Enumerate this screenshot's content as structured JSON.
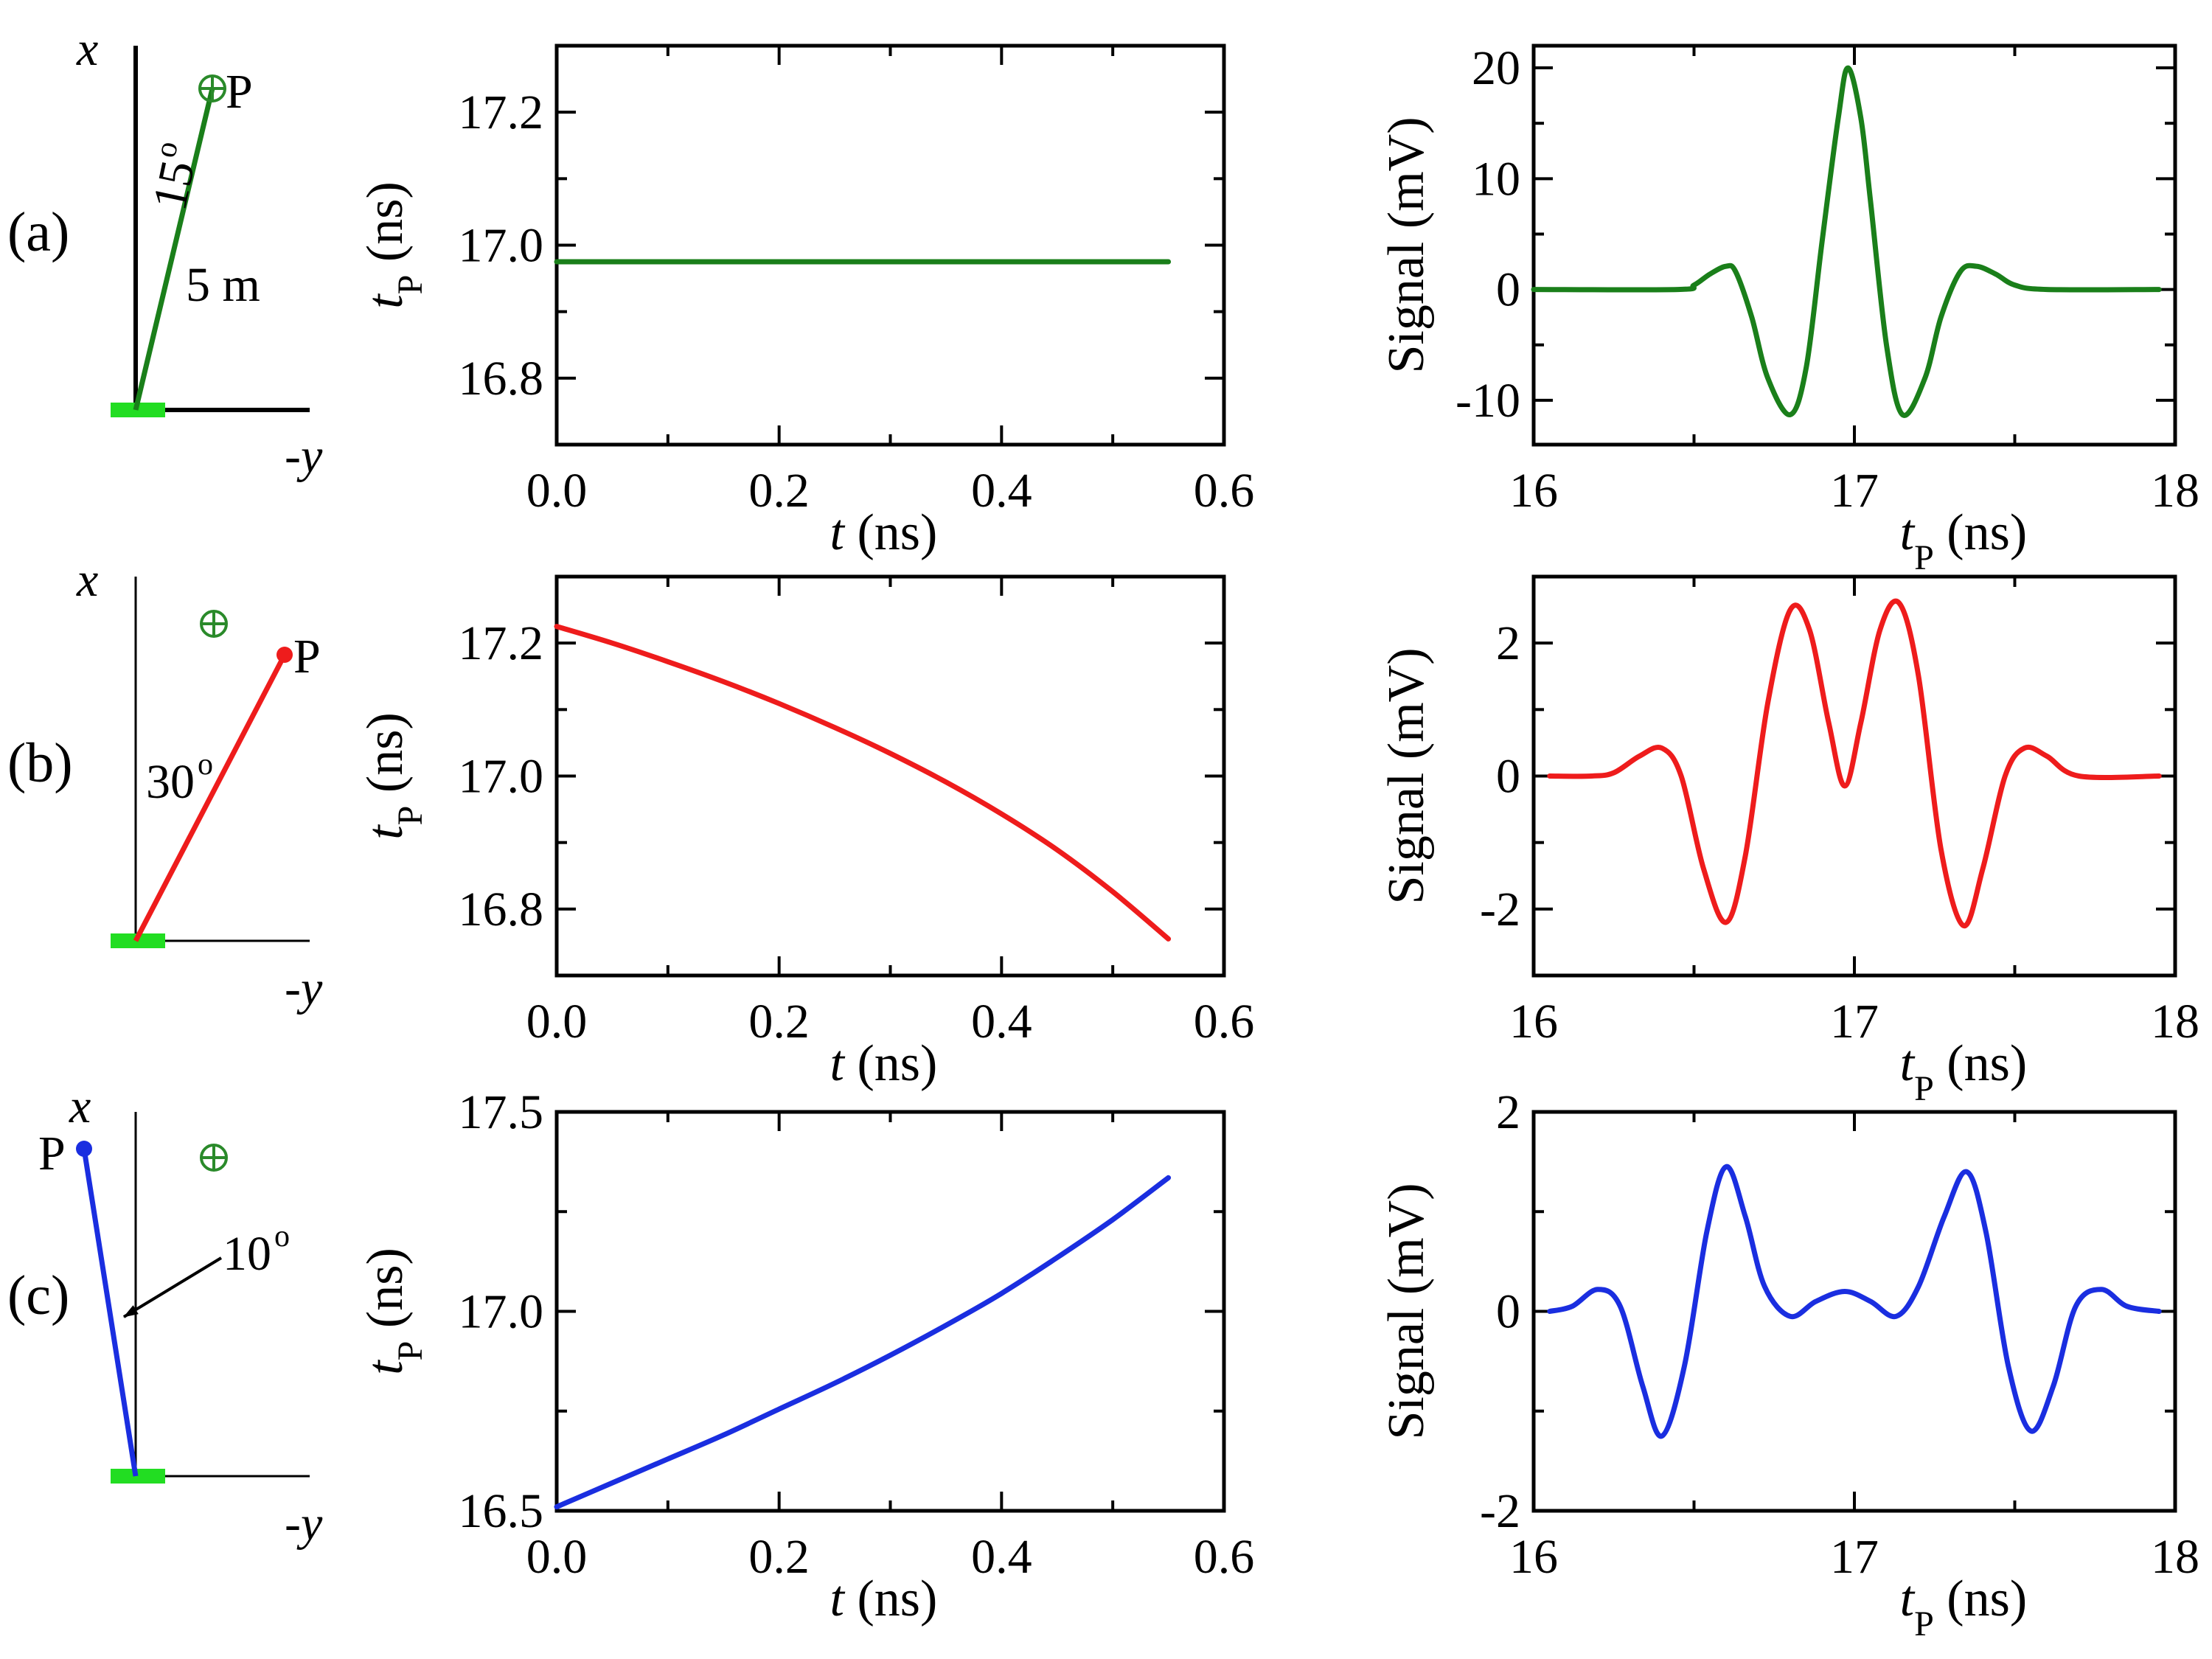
{
  "colors": {
    "green": "#1a7f1a",
    "red": "#ee1c1c",
    "blue": "#1a2ee0",
    "source_bar": "#22dd22",
    "circle_plus": "#2a8a2a"
  },
  "diagrams": [
    {
      "row_label": "(a)",
      "x_label": "x",
      "y_label": "-y",
      "point_label": "P",
      "angle_label": "15",
      "degree_mark": "o",
      "length_label": "5 m"
    },
    {
      "row_label": "(b)",
      "x_label": "x",
      "y_label": "-y",
      "point_label": "P",
      "angle_label": "30",
      "degree_mark": "o"
    },
    {
      "row_label": "(c)",
      "x_label": "x",
      "y_label": "-y",
      "point_label": "P",
      "angle_label": "10",
      "degree_mark": "o"
    }
  ],
  "chart_data": [
    {
      "id": "a-mid",
      "type": "line",
      "color_key": "green",
      "xlabel": "t (ns)",
      "ylabel": "tP (ns)",
      "xlim": [
        0,
        0.6
      ],
      "ylim": [
        16.7,
        17.3
      ],
      "xticks": [
        0,
        0.2,
        0.4,
        0.6
      ],
      "xtick_labels": [
        "0.0",
        "0.2",
        "0.4",
        "0.6"
      ],
      "yticks": [
        16.8,
        17.0,
        17.2
      ],
      "ytick_labels": [
        "16.8",
        "17.0",
        "17.2"
      ],
      "minor_x": [
        0.1,
        0.3,
        0.5
      ],
      "minor_y": [
        16.9,
        17.1
      ],
      "series": [
        {
          "name": "tP",
          "x": [
            0,
            0.55
          ],
          "y": [
            16.975,
            16.975
          ]
        }
      ]
    },
    {
      "id": "a-right",
      "type": "line",
      "color_key": "green",
      "xlabel": "tP (ns)",
      "ylabel": "Signal (mV)",
      "xlim": [
        16,
        18
      ],
      "ylim": [
        -14,
        22
      ],
      "xticks": [
        16,
        17,
        18
      ],
      "xtick_labels": [
        "16",
        "17",
        "18"
      ],
      "yticks": [
        -10,
        0,
        10,
        20
      ],
      "ytick_labels": [
        "-10",
        "0",
        "10",
        "20"
      ],
      "minor_x": [
        16.5,
        17.5
      ],
      "minor_y": [
        -5,
        5,
        15
      ],
      "series": [
        {
          "name": "signal",
          "x": [
            16.0,
            16.45,
            16.5,
            16.55,
            16.6,
            16.63,
            16.68,
            16.73,
            16.8,
            16.85,
            16.9,
            16.95,
            16.98,
            17.02,
            17.05,
            17.1,
            17.15,
            17.22,
            17.27,
            17.33,
            17.38,
            17.44,
            17.5,
            17.6,
            17.95
          ],
          "y": [
            0,
            0,
            0.4,
            1.4,
            2.1,
            1.6,
            -2.5,
            -8,
            -11.3,
            -7,
            4.5,
            15.5,
            20,
            15.5,
            8,
            -5,
            -11.3,
            -8,
            -2.5,
            1.6,
            2.1,
            1.4,
            0.4,
            0,
            0
          ]
        }
      ]
    },
    {
      "id": "b-mid",
      "type": "line",
      "color_key": "red",
      "xlabel": "t (ns)",
      "ylabel": "tP (ns)",
      "xlim": [
        0,
        0.6
      ],
      "ylim": [
        16.7,
        17.3
      ],
      "xticks": [
        0,
        0.2,
        0.4,
        0.6
      ],
      "xtick_labels": [
        "0.0",
        "0.2",
        "0.4",
        "0.6"
      ],
      "yticks": [
        16.8,
        17.0,
        17.2
      ],
      "ytick_labels": [
        "16.8",
        "17.0",
        "17.2"
      ],
      "minor_x": [
        0.1,
        0.3,
        0.5
      ],
      "minor_y": [
        16.9,
        17.1
      ],
      "series": [
        {
          "name": "tP",
          "x": [
            0,
            0.05,
            0.1,
            0.15,
            0.2,
            0.25,
            0.3,
            0.35,
            0.4,
            0.45,
            0.5,
            0.55
          ],
          "y": [
            17.225,
            17.2,
            17.172,
            17.142,
            17.109,
            17.073,
            17.034,
            16.991,
            16.943,
            16.889,
            16.826,
            16.755
          ]
        }
      ]
    },
    {
      "id": "b-right",
      "type": "line",
      "color_key": "red",
      "xlabel": "tP (ns)",
      "ylabel": "Signal (mV)",
      "xlim": [
        16,
        18
      ],
      "ylim": [
        -3,
        3
      ],
      "xticks": [
        16,
        17,
        18
      ],
      "xtick_labels": [
        "16",
        "17",
        "18"
      ],
      "yticks": [
        -2,
        0,
        2
      ],
      "ytick_labels": [
        "-2",
        "0",
        "2"
      ],
      "minor_x": [
        16.5,
        17.5
      ],
      "minor_y": [
        -1,
        1
      ],
      "series": [
        {
          "name": "signal",
          "x": [
            16.05,
            16.18,
            16.25,
            16.33,
            16.4,
            16.46,
            16.53,
            16.6,
            16.66,
            16.73,
            16.8,
            16.86,
            16.92,
            16.97,
            17.02,
            17.08,
            17.14,
            17.2,
            17.27,
            17.34,
            17.4,
            17.47,
            17.53,
            17.6,
            17.7,
            17.95
          ],
          "y": [
            0,
            0,
            0.05,
            0.3,
            0.42,
            0,
            -1.4,
            -2.2,
            -1.2,
            1.1,
            2.5,
            2.2,
            0.8,
            -0.15,
            0.8,
            2.2,
            2.6,
            1.5,
            -1.1,
            -2.25,
            -1.4,
            0,
            0.42,
            0.3,
            0,
            0
          ]
        }
      ]
    },
    {
      "id": "c-mid",
      "type": "line",
      "color_key": "blue",
      "xlabel": "t (ns)",
      "ylabel": "tP (ns)",
      "xlim": [
        0,
        0.6
      ],
      "ylim": [
        16.5,
        17.5
      ],
      "xticks": [
        0,
        0.2,
        0.4,
        0.6
      ],
      "xtick_labels": [
        "0.0",
        "0.2",
        "0.4",
        "0.6"
      ],
      "yticks": [
        16.5,
        17.0,
        17.5
      ],
      "ytick_labels": [
        "16.5",
        "17.0",
        "17.5"
      ],
      "minor_x": [
        0.1,
        0.3,
        0.5
      ],
      "minor_y": [
        16.75,
        17.25
      ],
      "series": [
        {
          "name": "tP",
          "x": [
            0,
            0.05,
            0.1,
            0.15,
            0.2,
            0.25,
            0.3,
            0.35,
            0.4,
            0.45,
            0.5,
            0.55
          ],
          "y": [
            16.51,
            16.57,
            16.63,
            16.69,
            16.755,
            16.82,
            16.89,
            16.965,
            17.045,
            17.135,
            17.23,
            17.335
          ]
        }
      ]
    },
    {
      "id": "c-right",
      "type": "line",
      "color_key": "blue",
      "xlabel": "tP (ns)",
      "ylabel": "Signal (mV)",
      "xlim": [
        16,
        18
      ],
      "ylim": [
        -2,
        2
      ],
      "xticks": [
        16,
        17,
        18
      ],
      "xtick_labels": [
        "16",
        "17",
        "18"
      ],
      "yticks": [
        -2,
        0,
        2
      ],
      "ytick_labels": [
        "-2",
        "0",
        "2"
      ],
      "minor_x": [
        16.5,
        17.5
      ],
      "minor_y": [
        -1,
        1
      ],
      "series": [
        {
          "name": "signal",
          "x": [
            16.05,
            16.12,
            16.2,
            16.27,
            16.34,
            16.4,
            16.47,
            16.54,
            16.6,
            16.66,
            16.72,
            16.8,
            16.88,
            16.97,
            17.05,
            17.13,
            17.2,
            17.28,
            17.35,
            17.41,
            17.48,
            17.55,
            17.62,
            17.69,
            17.77,
            17.85,
            17.95
          ],
          "y": [
            0,
            0.05,
            0.22,
            0.05,
            -0.75,
            -1.25,
            -0.55,
            0.8,
            1.45,
            0.95,
            0.25,
            -0.05,
            0.1,
            0.2,
            0.1,
            -0.05,
            0.25,
            0.95,
            1.4,
            0.8,
            -0.55,
            -1.2,
            -0.75,
            0.05,
            0.22,
            0.05,
            0
          ]
        }
      ]
    }
  ]
}
